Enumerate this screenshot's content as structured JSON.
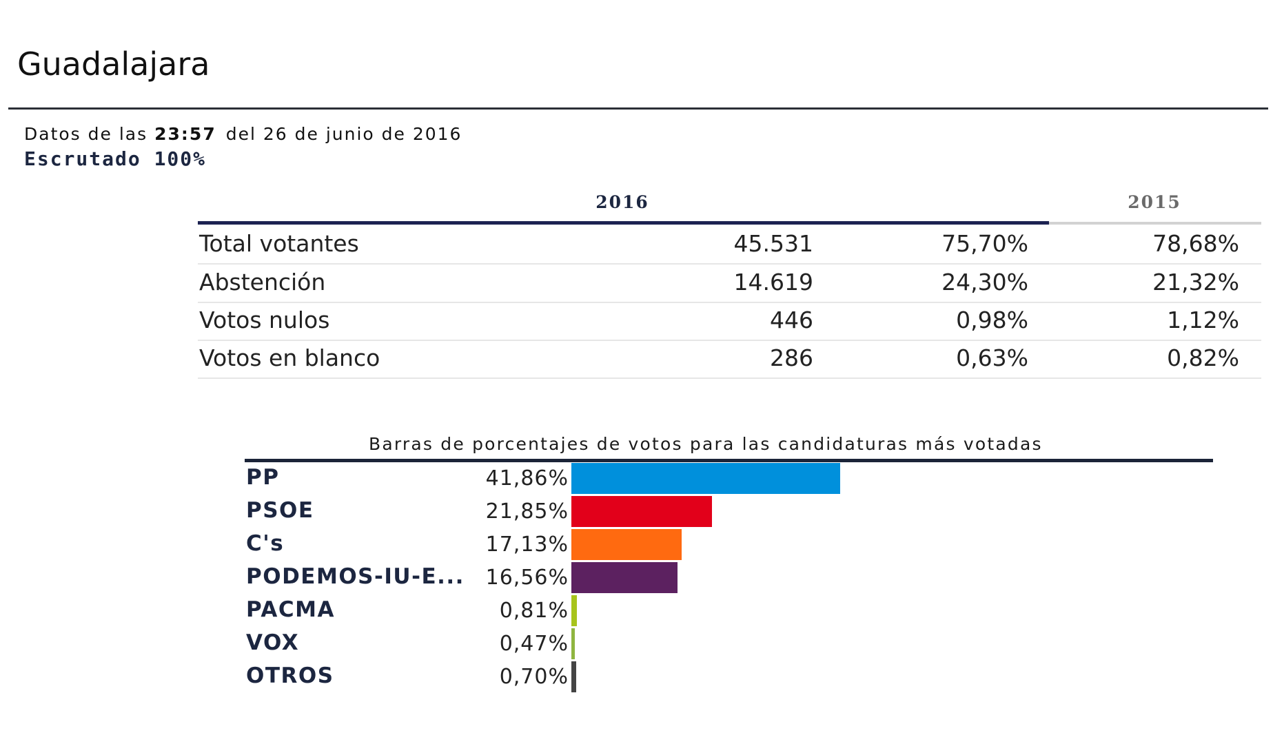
{
  "header": {
    "title": "Guadalajara",
    "datos_prefix": "Datos de las",
    "time": "23:57",
    "datos_suffix": "del 26 de junio de 2016",
    "escrutado": "Escrutado 100%"
  },
  "summary_table": {
    "year_current": "2016",
    "year_previous": "2015",
    "rows": [
      {
        "label": "Total votantes",
        "count": "45.531",
        "pct_2016": "75,70%",
        "pct_2015": "78,68%"
      },
      {
        "label": "Abstención",
        "count": "14.619",
        "pct_2016": "24,30%",
        "pct_2015": "21,32%"
      },
      {
        "label": "Votos nulos",
        "count": "446",
        "pct_2016": "0,98%",
        "pct_2015": "1,12%"
      },
      {
        "label": "Votos en blanco",
        "count": "286",
        "pct_2016": "0,63%",
        "pct_2015": "0,82%"
      }
    ]
  },
  "chart_data": {
    "type": "bar",
    "orientation": "horizontal",
    "title": "Barras de porcentajes de votos para las candidaturas más votadas",
    "categories": [
      "PP",
      "PSOE",
      "C's",
      "PODEMOS-IU-E...",
      "PACMA",
      "VOX",
      "OTROS"
    ],
    "values": [
      41.86,
      21.85,
      17.13,
      16.56,
      0.81,
      0.47,
      0.7
    ],
    "labels": [
      "41,86%",
      "21,85%",
      "17,13%",
      "16,56%",
      "0,81%",
      "0,47%",
      "0,70%"
    ],
    "colors": [
      "#0090dc",
      "#e2001a",
      "#ff6a10",
      "#5c2160",
      "#a8c41c",
      "#8fb540",
      "#444444"
    ],
    "xlabel": "",
    "ylabel": "",
    "unit": "%"
  }
}
